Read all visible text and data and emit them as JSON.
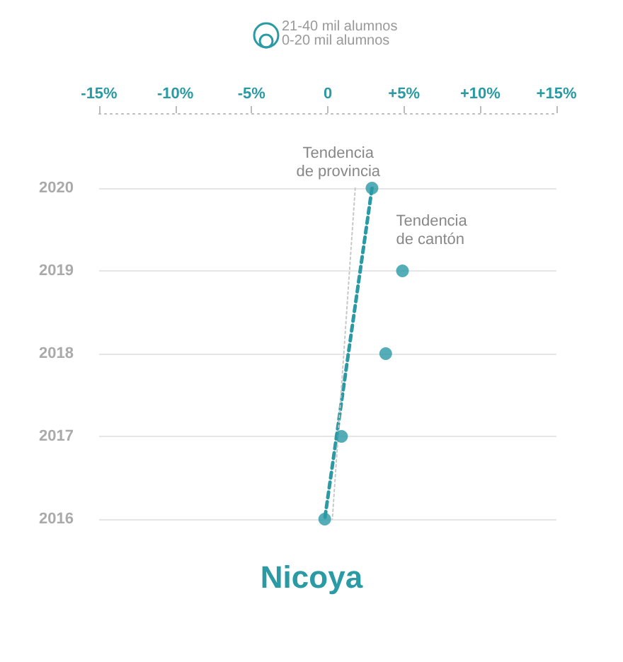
{
  "chart_data": {
    "type": "scatter",
    "title": "Nicoya",
    "orientation": "horizontal",
    "categories": [
      "2020",
      "2019",
      "2018",
      "2017",
      "2016"
    ],
    "series": [
      {
        "color": "#2a9aa5",
        "values": [
          2.9,
          4.9,
          3.8,
          0.9,
          -0.2
        ]
      },
      {
        "type": "line",
        "name": "Tendencia\nde cantón",
        "color": "#2a9aa5",
        "line_style": "dashed",
        "marker": "none",
        "values": [
          2.9,
          null,
          null,
          null,
          -0.2
        ]
      },
      {
        "type": "line",
        "name": "Tendencia\nde provincia",
        "color": "#c8c8c8",
        "line_style": "dotted",
        "marker": "none",
        "values": [
          1.8,
          null,
          null,
          null,
          0.3
        ]
      }
    ],
    "marker": "circle",
    "xlim": [
      -15,
      15
    ],
    "xticks": [
      {
        "value": -15,
        "label": "-15%"
      },
      {
        "value": -10,
        "label": "-10%"
      },
      {
        "value": -5,
        "label": "-5%"
      },
      {
        "value": 0,
        "label": "0"
      },
      {
        "value": 5,
        "label": "+5%"
      },
      {
        "value": 10,
        "label": "+10%"
      },
      {
        "value": 15,
        "label": "+15%"
      }
    ],
    "grid": "y",
    "annotations": [
      "21-40 mil alumnos",
      "0-20 mil alumnos"
    ]
  }
}
